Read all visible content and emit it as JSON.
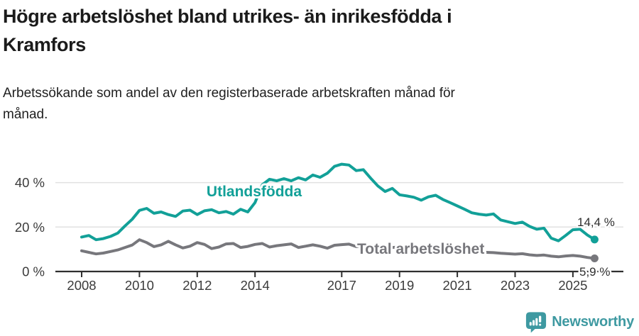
{
  "header": {
    "title_line1": "Högre arbetslöshet bland utrikes- än inrikesfödda i",
    "title_line2": "Kramfors",
    "subtitle_line1": "Arbetssökande som andel av den registerbaserade arbetskraften månad för",
    "subtitle_line2": "månad."
  },
  "chart_data": {
    "type": "line",
    "title": "Högre arbetslöshet bland utrikes- än inrikesfödda i Kramfors",
    "subtitle": "Arbetssökande som andel av den registerbaserade arbetskraften månad för månad.",
    "xlabel": "",
    "ylabel": "",
    "y_unit": "%",
    "xlim": [
      2008,
      2025.83
    ],
    "ylim": [
      0,
      52
    ],
    "grid": "horizontal",
    "y_ticks": [
      {
        "value": 0,
        "label": "0 %"
      },
      {
        "value": 20,
        "label": "20 %"
      },
      {
        "value": 40,
        "label": "40 %"
      }
    ],
    "x_ticks": [
      {
        "value": 2008,
        "label": "2008"
      },
      {
        "value": 2010,
        "label": "2010"
      },
      {
        "value": 2012,
        "label": "2012"
      },
      {
        "value": 2014,
        "label": "2014"
      },
      {
        "value": 2017,
        "label": "2017"
      },
      {
        "value": 2019,
        "label": "2019"
      },
      {
        "value": 2021,
        "label": "2021"
      },
      {
        "value": 2023,
        "label": "2023"
      },
      {
        "value": 2025,
        "label": "2025"
      }
    ],
    "series": [
      {
        "id": "total",
        "label": "Total arbetslöshet",
        "color": "#77777c",
        "end_value": 5.9,
        "end_label": "5,9 %",
        "points": [
          [
            2008,
            9.3
          ],
          [
            2008.25,
            8.6
          ],
          [
            2008.5,
            7.9
          ],
          [
            2008.75,
            8.3
          ],
          [
            2009,
            9.0
          ],
          [
            2009.25,
            9.7
          ],
          [
            2009.5,
            10.8
          ],
          [
            2009.75,
            11.9
          ],
          [
            2010,
            14.3
          ],
          [
            2010.25,
            13.0
          ],
          [
            2010.5,
            11.2
          ],
          [
            2010.75,
            12.0
          ],
          [
            2011,
            13.6
          ],
          [
            2011.25,
            12.0
          ],
          [
            2011.5,
            10.6
          ],
          [
            2011.75,
            11.4
          ],
          [
            2012,
            13.0
          ],
          [
            2012.25,
            12.2
          ],
          [
            2012.5,
            10.3
          ],
          [
            2012.75,
            11.0
          ],
          [
            2013,
            12.4
          ],
          [
            2013.25,
            12.6
          ],
          [
            2013.5,
            10.8
          ],
          [
            2013.75,
            11.3
          ],
          [
            2014,
            12.2
          ],
          [
            2014.25,
            12.6
          ],
          [
            2014.5,
            11.0
          ],
          [
            2014.75,
            11.6
          ],
          [
            2015,
            12.0
          ],
          [
            2015.25,
            12.4
          ],
          [
            2015.5,
            10.8
          ],
          [
            2015.75,
            11.4
          ],
          [
            2016,
            12.0
          ],
          [
            2016.25,
            11.4
          ],
          [
            2016.5,
            10.5
          ],
          [
            2016.75,
            11.8
          ],
          [
            2017,
            12.1
          ],
          [
            2017.25,
            12.3
          ],
          [
            2017.5,
            11.2
          ],
          [
            2017.75,
            11.5
          ],
          [
            2018,
            11.8
          ],
          [
            2018.25,
            11.2
          ],
          [
            2018.5,
            10.4
          ],
          [
            2018.75,
            10.8
          ],
          [
            2019,
            11.0
          ],
          [
            2019.25,
            10.6
          ],
          [
            2019.5,
            10.2
          ],
          [
            2019.75,
            10.5
          ],
          [
            2020,
            10.8
          ],
          [
            2020.25,
            11.2
          ],
          [
            2020.5,
            10.6
          ],
          [
            2020.75,
            10.2
          ],
          [
            2021,
            10.0
          ],
          [
            2021.25,
            9.5
          ],
          [
            2021.5,
            9.0
          ],
          [
            2021.75,
            8.8
          ],
          [
            2022,
            8.6
          ],
          [
            2022.25,
            8.5
          ],
          [
            2022.5,
            8.2
          ],
          [
            2022.75,
            8.0
          ],
          [
            2023,
            7.8
          ],
          [
            2023.25,
            8.0
          ],
          [
            2023.5,
            7.5
          ],
          [
            2023.75,
            7.2
          ],
          [
            2024,
            7.4
          ],
          [
            2024.25,
            6.9
          ],
          [
            2024.5,
            6.6
          ],
          [
            2024.75,
            7.0
          ],
          [
            2025,
            7.2
          ],
          [
            2025.25,
            6.9
          ],
          [
            2025.5,
            6.3
          ],
          [
            2025.75,
            5.9
          ]
        ]
      },
      {
        "id": "utlandsfodda",
        "label": "Utlandsfödda",
        "color": "#12a098",
        "end_value": 14.4,
        "end_label": "14,4 %",
        "points": [
          [
            2008,
            15.5
          ],
          [
            2008.25,
            16.2
          ],
          [
            2008.5,
            14.3
          ],
          [
            2008.75,
            14.8
          ],
          [
            2009,
            15.8
          ],
          [
            2009.25,
            17.3
          ],
          [
            2009.5,
            20.5
          ],
          [
            2009.75,
            23.5
          ],
          [
            2010,
            27.5
          ],
          [
            2010.25,
            28.4
          ],
          [
            2010.5,
            26.2
          ],
          [
            2010.75,
            26.8
          ],
          [
            2011,
            25.6
          ],
          [
            2011.25,
            24.8
          ],
          [
            2011.5,
            27.2
          ],
          [
            2011.75,
            27.6
          ],
          [
            2012,
            25.6
          ],
          [
            2012.25,
            27.3
          ],
          [
            2012.5,
            27.8
          ],
          [
            2012.75,
            26.4
          ],
          [
            2013,
            27.0
          ],
          [
            2013.25,
            25.8
          ],
          [
            2013.5,
            28.0
          ],
          [
            2013.75,
            26.8
          ],
          [
            2014,
            31.0
          ],
          [
            2014.25,
            39.0
          ],
          [
            2014.5,
            41.5
          ],
          [
            2014.75,
            40.8
          ],
          [
            2015,
            41.8
          ],
          [
            2015.25,
            40.8
          ],
          [
            2015.5,
            42.2
          ],
          [
            2015.75,
            41.2
          ],
          [
            2016,
            43.4
          ],
          [
            2016.25,
            42.4
          ],
          [
            2016.5,
            44.2
          ],
          [
            2016.75,
            47.3
          ],
          [
            2017,
            48.3
          ],
          [
            2017.25,
            47.9
          ],
          [
            2017.5,
            45.4
          ],
          [
            2017.75,
            45.8
          ],
          [
            2018,
            42.0
          ],
          [
            2018.25,
            38.5
          ],
          [
            2018.5,
            36.0
          ],
          [
            2018.75,
            37.4
          ],
          [
            2019,
            34.5
          ],
          [
            2019.25,
            34.0
          ],
          [
            2019.5,
            33.4
          ],
          [
            2019.75,
            32.1
          ],
          [
            2020,
            33.6
          ],
          [
            2020.25,
            34.3
          ],
          [
            2020.5,
            32.4
          ],
          [
            2020.75,
            31.0
          ],
          [
            2021,
            29.5
          ],
          [
            2021.25,
            28.0
          ],
          [
            2021.5,
            26.4
          ],
          [
            2021.75,
            25.8
          ],
          [
            2022,
            25.4
          ],
          [
            2022.25,
            25.9
          ],
          [
            2022.5,
            23.2
          ],
          [
            2022.75,
            22.4
          ],
          [
            2023,
            21.6
          ],
          [
            2023.25,
            22.2
          ],
          [
            2023.5,
            20.3
          ],
          [
            2023.75,
            19.0
          ],
          [
            2024,
            19.5
          ],
          [
            2024.25,
            15.0
          ],
          [
            2024.5,
            13.8
          ],
          [
            2024.75,
            16.2
          ],
          [
            2025,
            18.8
          ],
          [
            2025.25,
            19.0
          ],
          [
            2025.5,
            16.4
          ],
          [
            2025.75,
            14.4
          ]
        ]
      }
    ],
    "legend_position": "inline-labels"
  },
  "footer": {
    "brand": "Newsworthy",
    "brand_color": "#3e99a1"
  }
}
